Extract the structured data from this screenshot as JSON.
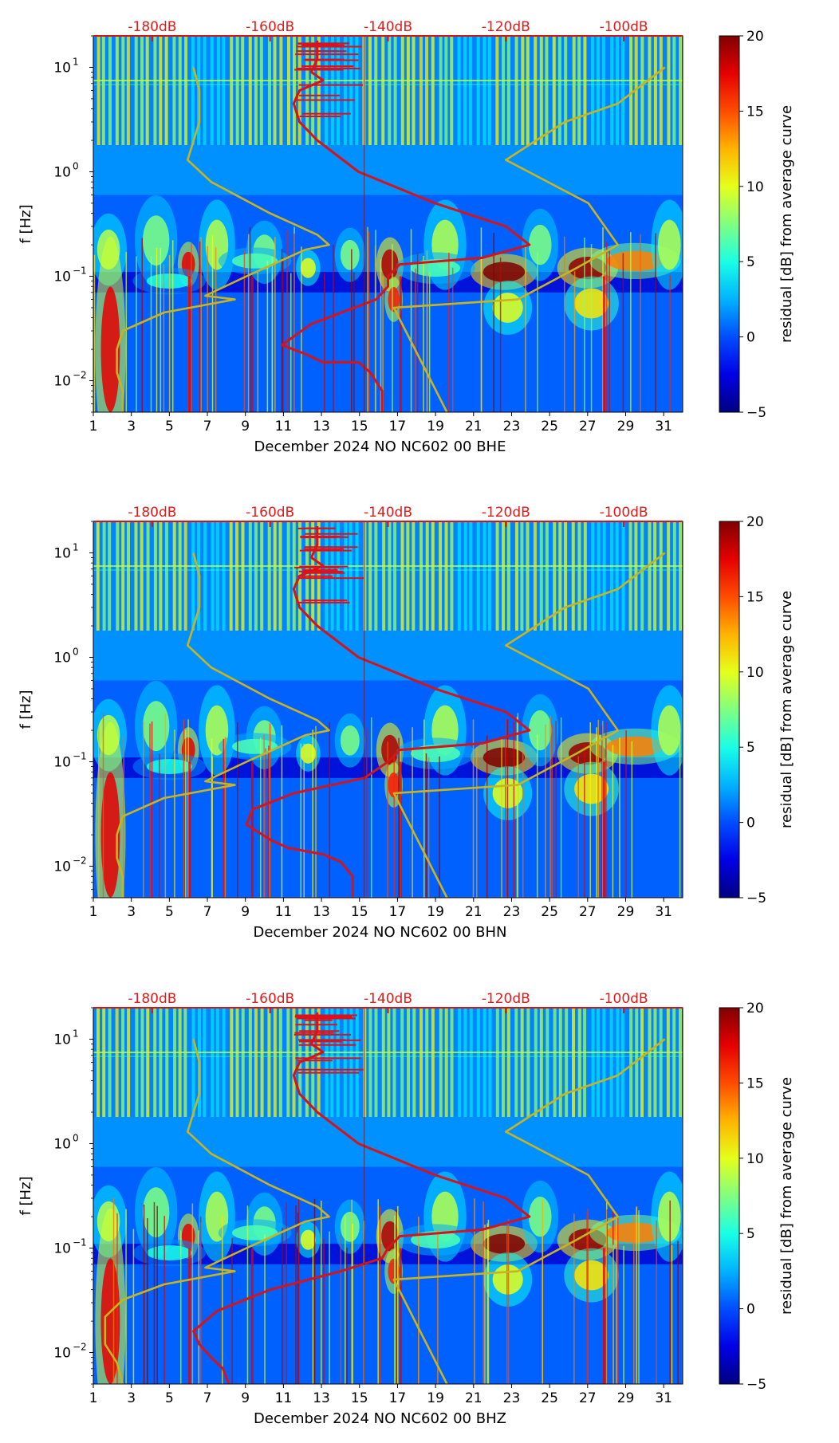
{
  "chart_data": [
    {
      "type": "heatmap",
      "channel": "BHE",
      "xlabel": "December 2024 NO NC602 00 BHE",
      "ylabel": "f [Hz]",
      "x_ticks": [
        "1",
        "3",
        "5",
        "7",
        "9",
        "11",
        "13",
        "15",
        "17",
        "19",
        "21",
        "23",
        "25",
        "27",
        "29",
        "31"
      ],
      "x_range": [
        1,
        32
      ],
      "y_scale": "log",
      "y_range": [
        0.005,
        20
      ],
      "y_ticks": [
        {
          "value": 0.01,
          "base": "10",
          "exp": "−2"
        },
        {
          "value": 0.1,
          "base": "10",
          "exp": "−1"
        },
        {
          "value": 1,
          "base": "10",
          "exp": "0"
        },
        {
          "value": 10,
          "base": "10",
          "exp": "1"
        }
      ],
      "db_ticks": [
        {
          "label": "-180dB",
          "value": -180
        },
        {
          "label": "-160dB",
          "value": -160
        },
        {
          "label": "-140dB",
          "value": -140
        },
        {
          "label": "-120dB",
          "value": -120
        },
        {
          "label": "-100dB",
          "value": -100
        }
      ],
      "db_range": [
        -190,
        -90
      ],
      "colorbar": {
        "label": "residual [dB] from average curve",
        "min": -5,
        "max": 20,
        "ticks": [
          "−5",
          "0",
          "5",
          "10",
          "15",
          "20"
        ],
        "colormap": "jet"
      },
      "series": [
        {
          "color": "#d4141b",
          "points": [
            [
              -141,
              0.005
            ],
            [
              -141,
              0.008
            ],
            [
              -143,
              0.012
            ],
            [
              -145,
              0.015
            ],
            [
              -151,
              0.015
            ],
            [
              -154,
              0.018
            ],
            [
              -158,
              0.022
            ],
            [
              -153,
              0.035
            ],
            [
              -142,
              0.06
            ],
            [
              -140,
              0.08
            ],
            [
              -140,
              0.1
            ],
            [
              -138,
              0.13
            ],
            [
              -124,
              0.15
            ],
            [
              -116,
              0.2
            ],
            [
              -120,
              0.3
            ],
            [
              -132,
              0.5
            ],
            [
              -145,
              1.0
            ],
            [
              -152,
              2.0
            ],
            [
              -155,
              3.0
            ],
            [
              -156,
              4.5
            ],
            [
              -155,
              6.0
            ],
            [
              -151,
              7.5
            ],
            [
              -153,
              9.0
            ],
            [
              -152,
              12.0
            ],
            [
              -152,
              18.0
            ]
          ]
        },
        {
          "color": "#c8b420",
          "points": [
            [
              -185,
              0.005
            ],
            [
              -185,
              0.008
            ],
            [
              -186,
              0.012
            ],
            [
              -186,
              0.02
            ],
            [
              -185,
              0.03
            ],
            [
              -178,
              0.045
            ],
            [
              -166,
              0.06
            ],
            [
              -171,
              0.065
            ],
            [
              -164,
              0.1
            ],
            [
              -154,
              0.18
            ],
            [
              -150,
              0.2
            ],
            [
              -152,
              0.25
            ],
            [
              -160,
              0.4
            ],
            [
              -170,
              0.8
            ],
            [
              -174,
              1.3
            ],
            [
              -172,
              3.0
            ],
            [
              -172,
              6.0
            ],
            [
              -173,
              10.0
            ]
          ]
        },
        {
          "color": "#c8b420",
          "points": [
            [
              -130,
              0.005
            ],
            [
              -139,
              0.05
            ],
            [
              -118,
              0.06
            ],
            [
              -108,
              0.12
            ],
            [
              -101,
              0.2
            ],
            [
              -106,
              0.5
            ],
            [
              -120,
              1.3
            ],
            [
              -110,
              3.0
            ],
            [
              -101,
              4.5
            ],
            [
              -93,
              10.0
            ]
          ]
        }
      ]
    },
    {
      "type": "heatmap",
      "channel": "BHN",
      "xlabel": "December 2024 NO NC602 00 BHN",
      "ylabel": "f [Hz]",
      "x_ticks": [
        "1",
        "3",
        "5",
        "7",
        "9",
        "11",
        "13",
        "15",
        "17",
        "19",
        "21",
        "23",
        "25",
        "27",
        "29",
        "31"
      ],
      "x_range": [
        1,
        32
      ],
      "y_scale": "log",
      "y_range": [
        0.005,
        20
      ],
      "y_ticks": [
        {
          "value": 0.01,
          "base": "10",
          "exp": "−2"
        },
        {
          "value": 0.1,
          "base": "10",
          "exp": "−1"
        },
        {
          "value": 1,
          "base": "10",
          "exp": "0"
        },
        {
          "value": 10,
          "base": "10",
          "exp": "1"
        }
      ],
      "db_ticks": [
        {
          "label": "-180dB",
          "value": -180
        },
        {
          "label": "-160dB",
          "value": -160
        },
        {
          "label": "-140dB",
          "value": -140
        },
        {
          "label": "-120dB",
          "value": -120
        },
        {
          "label": "-100dB",
          "value": -100
        }
      ],
      "db_range": [
        -190,
        -90
      ],
      "colorbar": {
        "label": "residual [dB] from average curve",
        "min": -5,
        "max": 20,
        "ticks": [
          "−5",
          "0",
          "5",
          "10",
          "15",
          "20"
        ],
        "colormap": "jet"
      },
      "series": [
        {
          "color": "#d4141b",
          "points": [
            [
              -146,
              0.005
            ],
            [
              -146,
              0.008
            ],
            [
              -148,
              0.011
            ],
            [
              -151,
              0.013
            ],
            [
              -157,
              0.015
            ],
            [
              -160,
              0.018
            ],
            [
              -164,
              0.025
            ],
            [
              -163,
              0.035
            ],
            [
              -156,
              0.05
            ],
            [
              -144,
              0.07
            ],
            [
              -140,
              0.1
            ],
            [
              -138,
              0.13
            ],
            [
              -124,
              0.15
            ],
            [
              -116,
              0.2
            ],
            [
              -120,
              0.3
            ],
            [
              -132,
              0.5
            ],
            [
              -145,
              1.0
            ],
            [
              -152,
              2.0
            ],
            [
              -155,
              3.0
            ],
            [
              -156,
              4.5
            ],
            [
              -155,
              6.0
            ],
            [
              -151,
              7.5
            ],
            [
              -153,
              9.0
            ],
            [
              -152,
              12.0
            ],
            [
              -152,
              18.0
            ]
          ]
        },
        {
          "color": "#c8b420",
          "points": [
            [
              -185,
              0.005
            ],
            [
              -185,
              0.008
            ],
            [
              -186,
              0.012
            ],
            [
              -186,
              0.02
            ],
            [
              -185,
              0.03
            ],
            [
              -178,
              0.045
            ],
            [
              -166,
              0.06
            ],
            [
              -171,
              0.065
            ],
            [
              -164,
              0.1
            ],
            [
              -154,
              0.18
            ],
            [
              -150,
              0.2
            ],
            [
              -152,
              0.25
            ],
            [
              -160,
              0.4
            ],
            [
              -170,
              0.8
            ],
            [
              -174,
              1.3
            ],
            [
              -172,
              3.0
            ],
            [
              -172,
              6.0
            ],
            [
              -173,
              10.0
            ]
          ]
        },
        {
          "color": "#c8b420",
          "points": [
            [
              -130,
              0.005
            ],
            [
              -139,
              0.05
            ],
            [
              -118,
              0.06
            ],
            [
              -108,
              0.12
            ],
            [
              -101,
              0.2
            ],
            [
              -106,
              0.5
            ],
            [
              -120,
              1.3
            ],
            [
              -110,
              3.0
            ],
            [
              -101,
              4.5
            ],
            [
              -93,
              10.0
            ]
          ]
        }
      ]
    },
    {
      "type": "heatmap",
      "channel": "BHZ",
      "xlabel": "December 2024 NO NC602 00 BHZ",
      "ylabel": "f [Hz]",
      "x_ticks": [
        "1",
        "3",
        "5",
        "7",
        "9",
        "11",
        "13",
        "15",
        "17",
        "19",
        "21",
        "23",
        "25",
        "27",
        "29",
        "31"
      ],
      "x_range": [
        1,
        32
      ],
      "y_scale": "log",
      "y_range": [
        0.005,
        20
      ],
      "y_ticks": [
        {
          "value": 0.01,
          "base": "10",
          "exp": "−2"
        },
        {
          "value": 0.1,
          "base": "10",
          "exp": "−1"
        },
        {
          "value": 1,
          "base": "10",
          "exp": "0"
        },
        {
          "value": 10,
          "base": "10",
          "exp": "1"
        }
      ],
      "db_ticks": [
        {
          "label": "-180dB",
          "value": -180
        },
        {
          "label": "-160dB",
          "value": -160
        },
        {
          "label": "-140dB",
          "value": -140
        },
        {
          "label": "-120dB",
          "value": -120
        },
        {
          "label": "-100dB",
          "value": -100
        }
      ],
      "db_range": [
        -190,
        -90
      ],
      "colorbar": {
        "label": "residual [dB] from average curve",
        "min": -5,
        "max": 20,
        "ticks": [
          "−5",
          "0",
          "5",
          "10",
          "15",
          "20"
        ],
        "colormap": "jet"
      },
      "series": [
        {
          "color": "#d4141b",
          "points": [
            [
              -167,
              0.005
            ],
            [
              -168,
              0.007
            ],
            [
              -170,
              0.009
            ],
            [
              -172,
              0.012
            ],
            [
              -173,
              0.016
            ],
            [
              -169,
              0.025
            ],
            [
              -160,
              0.04
            ],
            [
              -148,
              0.06
            ],
            [
              -141,
              0.08
            ],
            [
              -140,
              0.1
            ],
            [
              -138,
              0.13
            ],
            [
              -124,
              0.15
            ],
            [
              -116,
              0.2
            ],
            [
              -120,
              0.3
            ],
            [
              -132,
              0.5
            ],
            [
              -145,
              1.0
            ],
            [
              -152,
              2.0
            ],
            [
              -155,
              3.0
            ],
            [
              -156,
              4.5
            ],
            [
              -155,
              6.0
            ],
            [
              -151,
              7.5
            ],
            [
              -153,
              9.0
            ],
            [
              -152,
              12.0
            ],
            [
              -152,
              18.0
            ]
          ]
        },
        {
          "color": "#c8b420",
          "points": [
            [
              -185,
              0.005
            ],
            [
              -186,
              0.008
            ],
            [
              -188,
              0.012
            ],
            [
              -188,
              0.022
            ],
            [
              -185,
              0.032
            ],
            [
              -178,
              0.045
            ],
            [
              -166,
              0.06
            ],
            [
              -171,
              0.065
            ],
            [
              -164,
              0.1
            ],
            [
              -154,
              0.18
            ],
            [
              -150,
              0.2
            ],
            [
              -152,
              0.25
            ],
            [
              -160,
              0.4
            ],
            [
              -170,
              0.8
            ],
            [
              -174,
              1.3
            ],
            [
              -172,
              3.0
            ],
            [
              -172,
              6.0
            ],
            [
              -173,
              10.0
            ]
          ]
        },
        {
          "color": "#c8b420",
          "points": [
            [
              -130,
              0.005
            ],
            [
              -139,
              0.05
            ],
            [
              -118,
              0.06
            ],
            [
              -108,
              0.12
            ],
            [
              -101,
              0.2
            ],
            [
              -106,
              0.5
            ],
            [
              -120,
              1.3
            ],
            [
              -110,
              3.0
            ],
            [
              -101,
              4.5
            ],
            [
              -93,
              10.0
            ]
          ]
        }
      ]
    }
  ]
}
